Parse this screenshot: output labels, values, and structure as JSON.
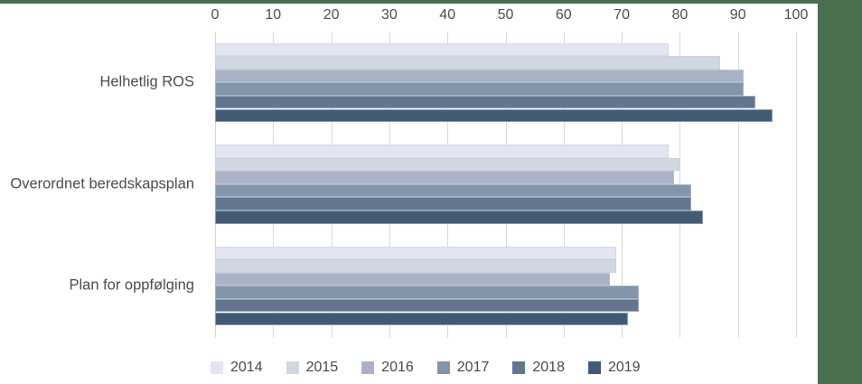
{
  "frame": {
    "accent_green": "#48704F",
    "background": "#ffffff",
    "gridline_color": "#d9d9d9",
    "text_color": "#4d4d4d"
  },
  "chart_data": {
    "type": "bar",
    "orientation": "horizontal",
    "title": "",
    "categories": [
      "Helhetlig ROS",
      "Overordnet beredskapsplan",
      "Plan for oppfølging"
    ],
    "series": [
      {
        "name": "2014",
        "color": "#e2e5ef",
        "values": [
          78,
          78,
          69
        ]
      },
      {
        "name": "2015",
        "color": "#d1d7e2",
        "values": [
          87,
          80,
          69
        ]
      },
      {
        "name": "2016",
        "color": "#a9b3c5",
        "values": [
          91,
          79,
          68
        ]
      },
      {
        "name": "2017",
        "color": "#8395a9",
        "values": [
          91,
          82,
          73
        ]
      },
      {
        "name": "2018",
        "color": "#63768e",
        "values": [
          93,
          82,
          73
        ]
      },
      {
        "name": "2019",
        "color": "#435a75",
        "values": [
          96,
          84,
          71
        ]
      }
    ],
    "x_axis": {
      "min": 0,
      "max": 100,
      "tick_step": 10,
      "ticks": [
        0,
        10,
        20,
        30,
        40,
        50,
        60,
        70,
        80,
        90,
        100
      ],
      "position": "top"
    },
    "grid": true,
    "legend": {
      "position": "bottom",
      "entries": [
        "2014",
        "2015",
        "2016",
        "2017",
        "2018",
        "2019"
      ]
    }
  }
}
